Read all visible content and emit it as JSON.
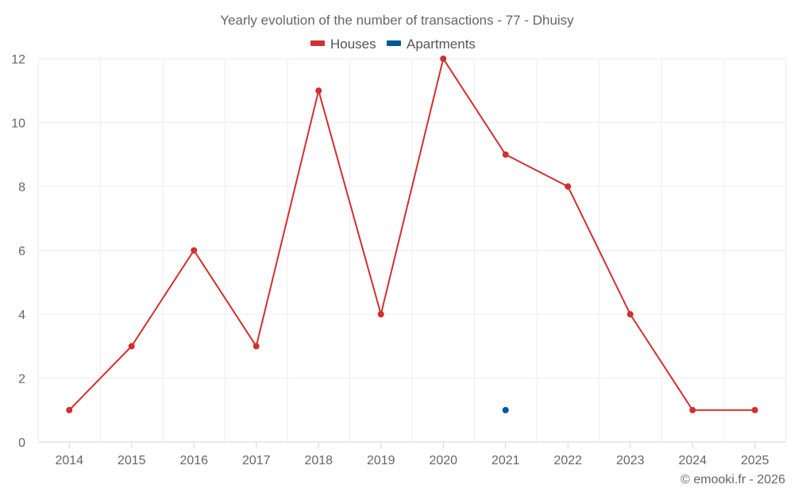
{
  "chart_data": {
    "type": "line",
    "title": "Yearly evolution of the number of transactions - 77 - Dhuisy",
    "categories": [
      "2014",
      "2015",
      "2016",
      "2017",
      "2018",
      "2019",
      "2020",
      "2021",
      "2022",
      "2023",
      "2024",
      "2025"
    ],
    "series": [
      {
        "name": "Houses",
        "color": "#d32f2f",
        "values": [
          1,
          3,
          6,
          3,
          11,
          4,
          12,
          9,
          8,
          4,
          1,
          1
        ]
      },
      {
        "name": "Apartments",
        "color": "#01579b",
        "values": [
          null,
          null,
          null,
          null,
          null,
          null,
          null,
          1,
          null,
          null,
          null,
          null
        ]
      }
    ],
    "ylim": [
      0,
      12
    ],
    "yticks": [
      0,
      2,
      4,
      6,
      8,
      10,
      12
    ],
    "grid": true,
    "legend": "top-center"
  },
  "credit": "© emooki.fr - 2026"
}
